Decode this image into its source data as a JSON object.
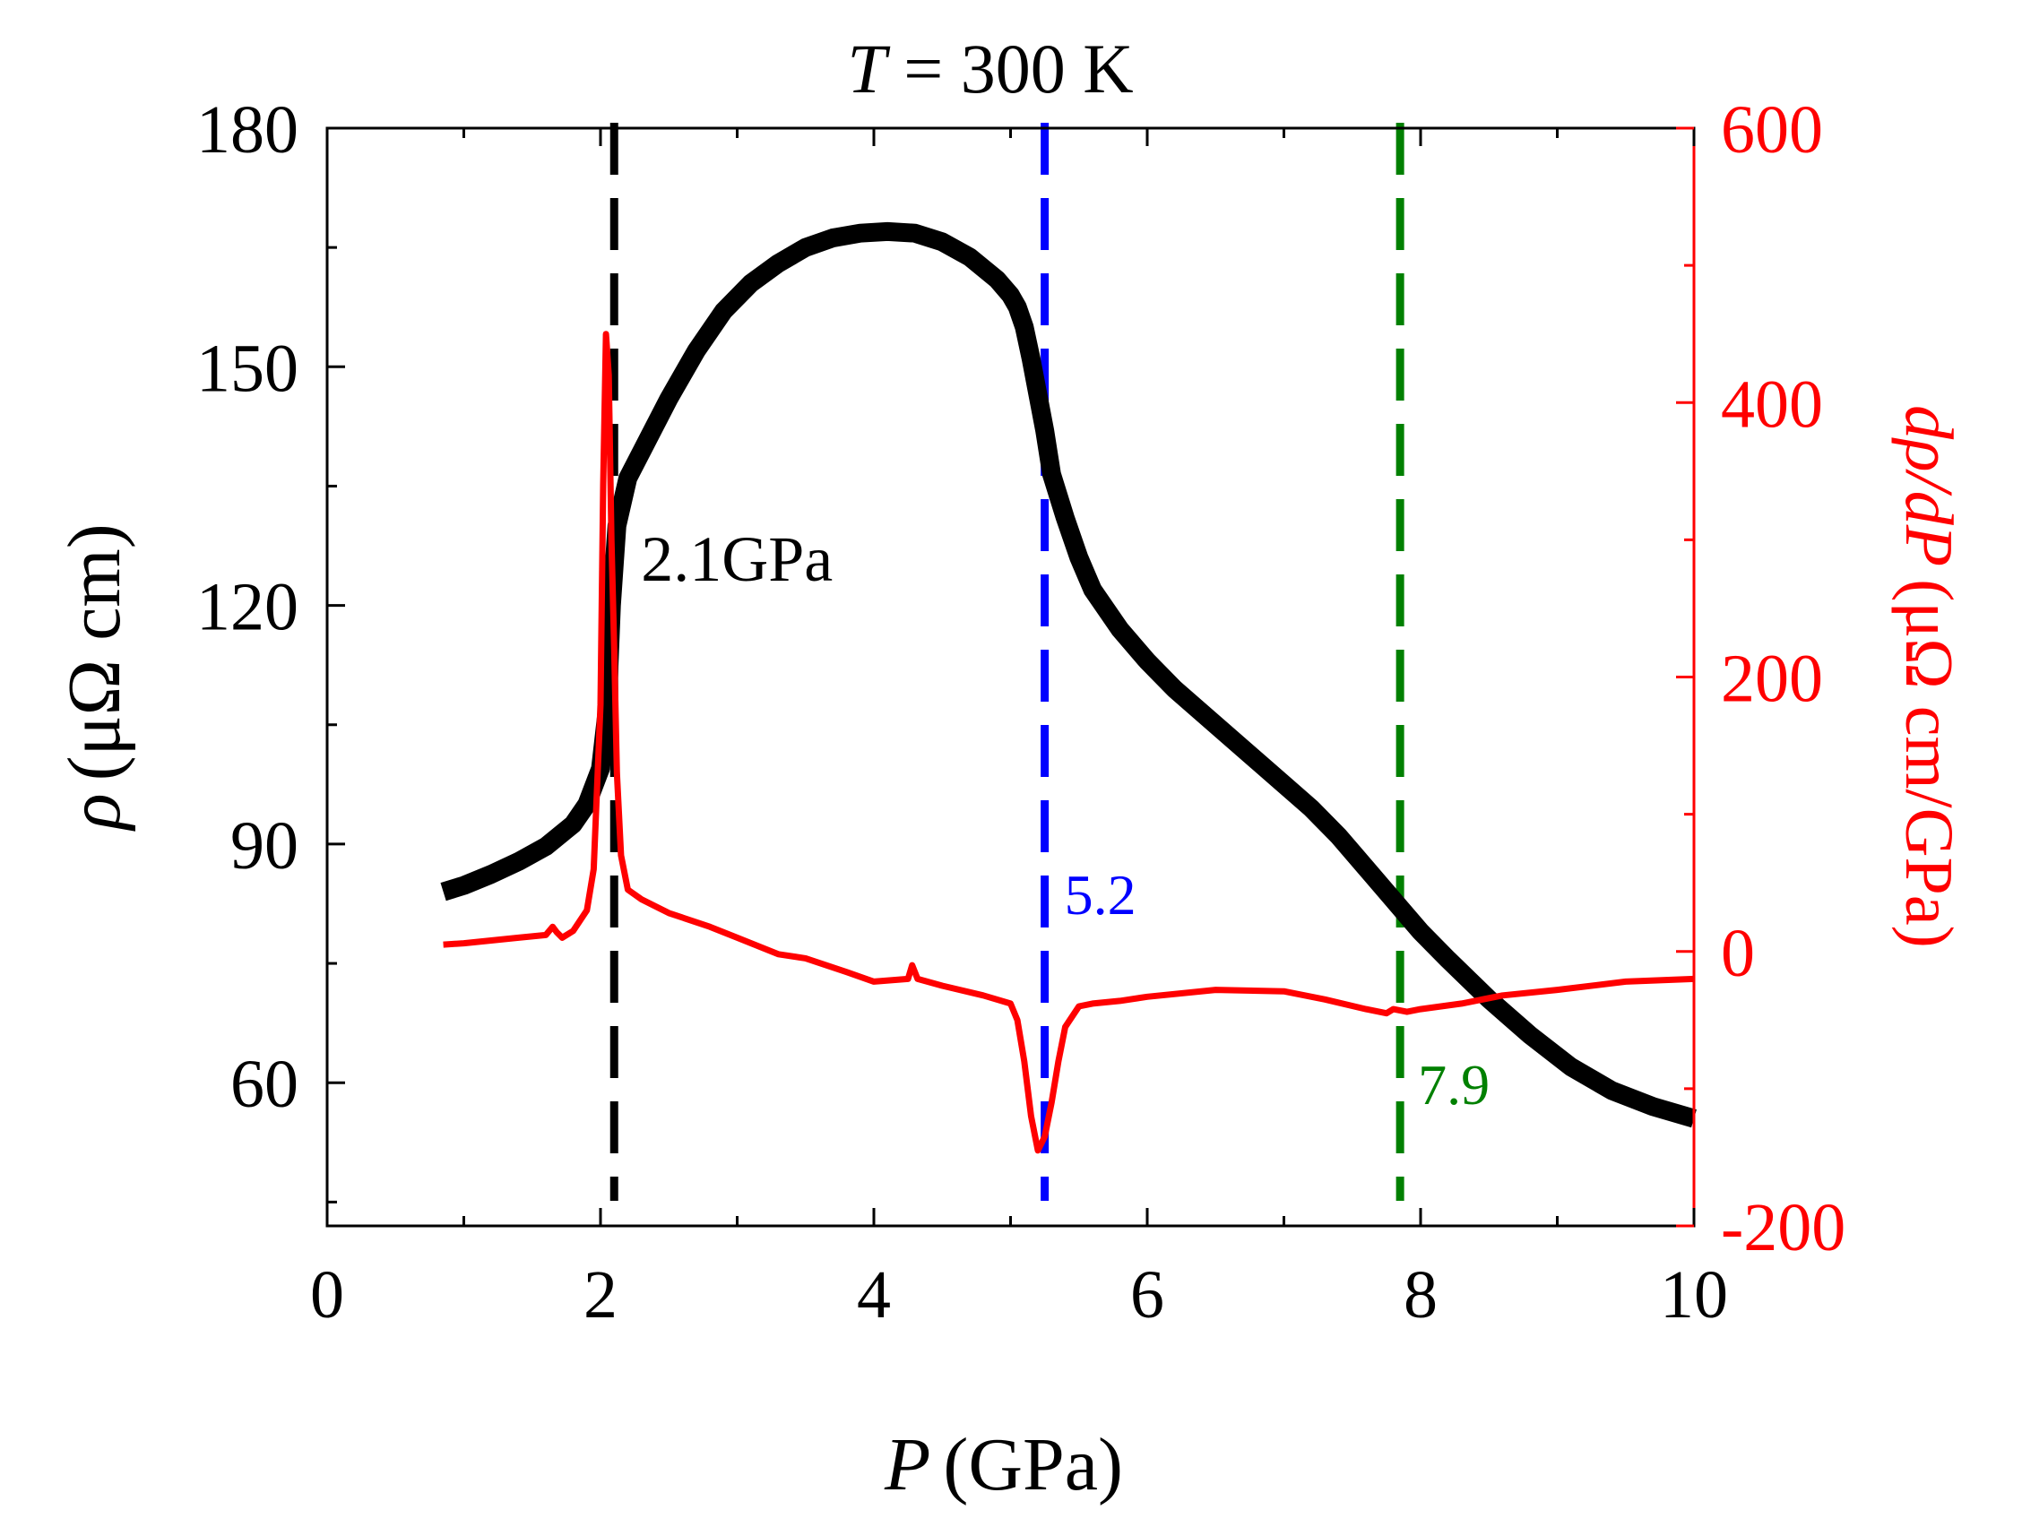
{
  "chart_data": {
    "type": "line",
    "title_symbol": "T",
    "title_rest": " = 300 K",
    "xlabel": {
      "symbol": "P",
      "unit": "(GPa)"
    },
    "ylabel_left": {
      "symbol": "ρ",
      "unit": "(μΩ cm)"
    },
    "ylabel_right": {
      "symbol": "dρ/dP",
      "unit": "(μΩ cm/GPa)"
    },
    "xlim": [
      0,
      10
    ],
    "ylim_left": [
      42,
      180
    ],
    "ylim_right": [
      -200,
      600
    ],
    "x_ticks": [
      "0",
      "2",
      "4",
      "6",
      "8",
      "10"
    ],
    "y_left_ticks": [
      "60",
      "90",
      "120",
      "150",
      "180"
    ],
    "y_right_ticks": [
      "-200",
      "0",
      "200",
      "400",
      "600"
    ],
    "colors": {
      "rho": "#000000",
      "deriv": "#ff0000",
      "line1": "#000000",
      "line2": "#0000ff",
      "line3": "#008000"
    },
    "series": [
      {
        "name": "rho",
        "axis": "left",
        "x": [
          0.85,
          1.0,
          1.2,
          1.4,
          1.6,
          1.8,
          1.9,
          2.0,
          2.05,
          2.08,
          2.12,
          2.2,
          2.35,
          2.5,
          2.7,
          2.9,
          3.1,
          3.3,
          3.5,
          3.7,
          3.9,
          4.1,
          4.3,
          4.5,
          4.7,
          4.9,
          5.0,
          5.05,
          5.1,
          5.15,
          5.2,
          5.25,
          5.3,
          5.4,
          5.5,
          5.6,
          5.8,
          6.0,
          6.2,
          6.5,
          6.8,
          7.0,
          7.2,
          7.4,
          7.6,
          7.8,
          8.0,
          8.2,
          8.5,
          8.8,
          9.1,
          9.4,
          9.7,
          10.0
        ],
        "values": [
          84,
          84.8,
          86.2,
          87.8,
          89.7,
          92.5,
          95,
          99.5,
          107,
          120,
          130,
          136,
          141,
          146,
          152,
          157,
          160.5,
          163,
          165,
          166.2,
          166.8,
          167,
          166.8,
          165.7,
          163.8,
          161,
          159,
          157.5,
          155,
          151,
          146.5,
          142,
          136.5,
          131,
          126,
          122,
          117,
          113,
          109.5,
          105,
          100.5,
          97.5,
          94.5,
          91,
          87,
          83,
          79,
          75.5,
          70.5,
          66,
          62,
          59,
          57,
          55.5
        ]
      },
      {
        "name": "dρ/dP",
        "axis": "right",
        "x": [
          0.85,
          1.0,
          1.2,
          1.4,
          1.6,
          1.65,
          1.68,
          1.72,
          1.8,
          1.9,
          1.95,
          2.0,
          2.02,
          2.04,
          2.06,
          2.08,
          2.1,
          2.12,
          2.15,
          2.2,
          2.3,
          2.5,
          2.8,
          3.0,
          3.3,
          3.5,
          3.8,
          4.0,
          4.25,
          4.28,
          4.32,
          4.5,
          4.8,
          5.0,
          5.05,
          5.1,
          5.15,
          5.2,
          5.25,
          5.3,
          5.35,
          5.4,
          5.5,
          5.6,
          5.8,
          6.0,
          6.5,
          7.0,
          7.3,
          7.6,
          7.75,
          7.8,
          7.9,
          8.0,
          8.3,
          8.6,
          9.0,
          9.5,
          10.0
        ],
        "values": [
          5,
          6,
          8,
          10,
          12,
          18,
          14,
          10,
          15,
          30,
          60,
          180,
          340,
          450,
          420,
          300,
          220,
          130,
          70,
          45,
          38,
          28,
          18,
          10,
          -2,
          -5,
          -15,
          -22,
          -20,
          -10,
          -20,
          -25,
          -32,
          -38,
          -50,
          -80,
          -120,
          -145,
          -135,
          -110,
          -80,
          -55,
          -40,
          -38,
          -36,
          -33,
          -28,
          -29,
          -35,
          -42,
          -45,
          -42,
          -44,
          -42,
          -38,
          -32,
          -28,
          -22,
          -20
        ]
      }
    ],
    "vlines": [
      {
        "x": 2.1,
        "label": "2.1GPa",
        "color": "line1"
      },
      {
        "x": 5.25,
        "label": "5.2",
        "color": "line2"
      },
      {
        "x": 7.85,
        "label": "7.9",
        "color": "line3"
      }
    ]
  }
}
